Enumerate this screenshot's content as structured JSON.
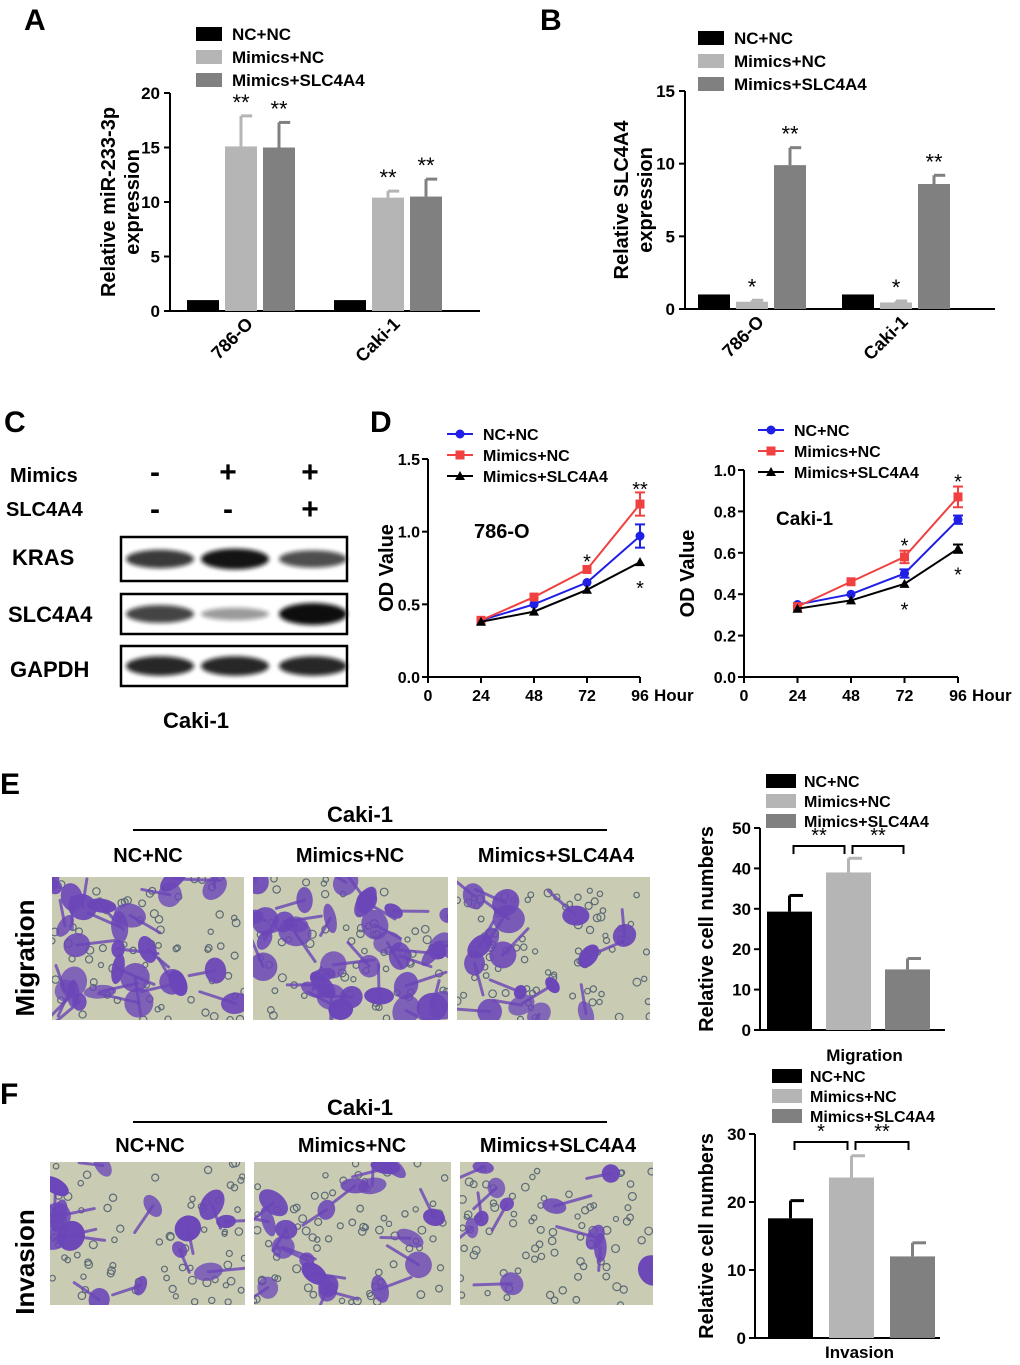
{
  "colors": {
    "black": "#000000",
    "light_gray": "#b5b5b5",
    "dark_gray": "#808080",
    "blue": "#1f1fe6",
    "red": "#f04040",
    "stain": "#6b46b8",
    "field": "#c9ccb2"
  },
  "panels": {
    "A": "A",
    "B": "B",
    "C": "C",
    "D": "D",
    "E": "E",
    "F": "F"
  },
  "panel_c": {
    "rows": [
      {
        "label": "Mimics",
        "marks": [
          "-",
          "+",
          "+"
        ]
      },
      {
        "label": "SLC4A4",
        "marks": [
          "-",
          "-",
          "+"
        ]
      }
    ],
    "blots": [
      "KRAS",
      "SLC4A4",
      "GAPDH"
    ],
    "band_intensity": [
      [
        0.7,
        0.9,
        0.6
      ],
      [
        0.65,
        0.2,
        1.0
      ],
      [
        0.8,
        0.8,
        0.8
      ]
    ],
    "cell_line": "Caki-1"
  },
  "panel_e": {
    "cell_line": "Caki-1",
    "groups": [
      "NC+NC",
      "Mimics+NC",
      "Mimics+SLC4A4"
    ],
    "row_label": "Migration"
  },
  "panel_f": {
    "cell_line": "Caki-1",
    "groups": [
      "NC+NC",
      "Mimics+NC",
      "Mimics+SLC4A4"
    ],
    "row_label": "Invasion"
  },
  "chart_data": [
    {
      "id": "A",
      "type": "bar",
      "categories": [
        "786-O",
        "Caki-1"
      ],
      "series": [
        {
          "name": "NC+NC",
          "values": [
            1,
            1
          ],
          "errors": [
            0,
            0
          ],
          "sig": [
            "",
            ""
          ]
        },
        {
          "name": "Mimics+NC",
          "values": [
            15.1,
            10.4
          ],
          "errors": [
            2.8,
            0.6
          ],
          "sig": [
            "**",
            "**"
          ]
        },
        {
          "name": "Mimics+SLC4A4",
          "values": [
            15.0,
            10.5
          ],
          "errors": [
            2.3,
            1.6
          ],
          "sig": [
            "**",
            "**"
          ]
        }
      ],
      "ylabel": [
        "Relative miR-233-3p",
        "expression"
      ],
      "ylim": [
        0,
        20
      ],
      "yticks": [
        "0",
        "5",
        "10",
        "15",
        "20"
      ]
    },
    {
      "id": "B",
      "type": "bar",
      "categories": [
        "786-O",
        "Caki-1"
      ],
      "series": [
        {
          "name": "NC+NC",
          "values": [
            1,
            1
          ],
          "errors": [
            0,
            0
          ],
          "sig": [
            "",
            ""
          ]
        },
        {
          "name": "Mimics+NC",
          "values": [
            0.5,
            0.45
          ],
          "errors": [
            0.1,
            0.1
          ],
          "sig": [
            "*",
            "*"
          ]
        },
        {
          "name": "Mimics+SLC4A4",
          "values": [
            9.9,
            8.6
          ],
          "errors": [
            1.2,
            0.6
          ],
          "sig": [
            "**",
            "**"
          ]
        }
      ],
      "ylabel": [
        "Relative SLC4A4",
        "expression"
      ],
      "ylim": [
        0,
        15
      ],
      "yticks": [
        "0",
        "5",
        "10",
        "15"
      ]
    },
    {
      "id": "D1",
      "type": "line",
      "annotation": "786-O",
      "x": [
        24,
        48,
        72,
        96
      ],
      "xticks": [
        "0",
        "24",
        "48",
        "72",
        "96"
      ],
      "xlabel": "Hour",
      "ylabel": "OD Value",
      "ylim": [
        0,
        1.5
      ],
      "yticks": [
        "0.0",
        "0.5",
        "1.0",
        "1.5"
      ],
      "series": [
        {
          "name": "NC+NC",
          "values": [
            0.39,
            0.5,
            0.65,
            0.97
          ],
          "errors": [
            0,
            0,
            0,
            0.08
          ]
        },
        {
          "name": "Mimics+NC",
          "values": [
            0.39,
            0.55,
            0.74,
            1.19
          ],
          "errors": [
            0,
            0,
            0,
            0.08
          ]
        },
        {
          "name": "Mimics+SLC4A4",
          "values": [
            0.38,
            0.45,
            0.6,
            0.79
          ],
          "errors": [
            0,
            0,
            0,
            0
          ]
        }
      ],
      "stars": [
        {
          "x": 72,
          "y": 0.8,
          "text": "*"
        },
        {
          "x": 96,
          "y": 1.3,
          "text": "**"
        },
        {
          "x": 96,
          "y": 0.62,
          "text": "*"
        }
      ]
    },
    {
      "id": "D2",
      "type": "line",
      "annotation": "Caki-1",
      "x": [
        24,
        48,
        72,
        96
      ],
      "xticks": [
        "0",
        "24",
        "48",
        "72",
        "96"
      ],
      "xlabel": "Hour",
      "ylabel": "OD Value",
      "ylim": [
        0,
        1.0
      ],
      "yticks": [
        "0.0",
        "0.2",
        "0.4",
        "0.6",
        "0.8",
        "1.0"
      ],
      "series": [
        {
          "name": "NC+NC",
          "values": [
            0.35,
            0.4,
            0.5,
            0.76
          ],
          "errors": [
            0,
            0,
            0.02,
            0.02
          ]
        },
        {
          "name": "Mimics+NC",
          "values": [
            0.34,
            0.46,
            0.58,
            0.87
          ],
          "errors": [
            0,
            0,
            0.03,
            0.05
          ]
        },
        {
          "name": "Mimics+SLC4A4",
          "values": [
            0.33,
            0.37,
            0.45,
            0.62
          ],
          "errors": [
            0,
            0,
            0,
            0.02
          ]
        }
      ],
      "stars": [
        {
          "x": 72,
          "y": 0.64,
          "text": "*"
        },
        {
          "x": 72,
          "y": 0.33,
          "text": "*"
        },
        {
          "x": 96,
          "y": 0.95,
          "text": "*"
        },
        {
          "x": 96,
          "y": 0.5,
          "text": "*"
        }
      ]
    },
    {
      "id": "E",
      "type": "bar",
      "categories": [
        "NC+NC",
        "Mimics+NC",
        "Mimics+SLC4A4"
      ],
      "values": [
        29.3,
        39.0,
        15.0
      ],
      "errors": [
        4.0,
        3.5,
        2.7
      ],
      "xlabel": "Migration",
      "ylabel": "Relative cell numbers",
      "ylim": [
        0,
        50
      ],
      "yticks": [
        "0",
        "10",
        "20",
        "30",
        "40",
        "50"
      ],
      "brackets": [
        {
          "from": 0,
          "to": 1,
          "text": "**"
        },
        {
          "from": 1,
          "to": 2,
          "text": "**"
        }
      ]
    },
    {
      "id": "F",
      "type": "bar",
      "categories": [
        "NC+NC",
        "Mimics+NC",
        "Mimics+SLC4A4"
      ],
      "values": [
        17.6,
        23.6,
        12.0
      ],
      "errors": [
        2.6,
        3.2,
        2.0
      ],
      "xlabel": "Invasion",
      "ylabel": "Relative cell numbers",
      "ylim": [
        0,
        30
      ],
      "yticks": [
        "0",
        "10",
        "20",
        "30"
      ],
      "brackets": [
        {
          "from": 0,
          "to": 1,
          "text": "*"
        },
        {
          "from": 1,
          "to": 2,
          "text": "**"
        }
      ]
    }
  ]
}
